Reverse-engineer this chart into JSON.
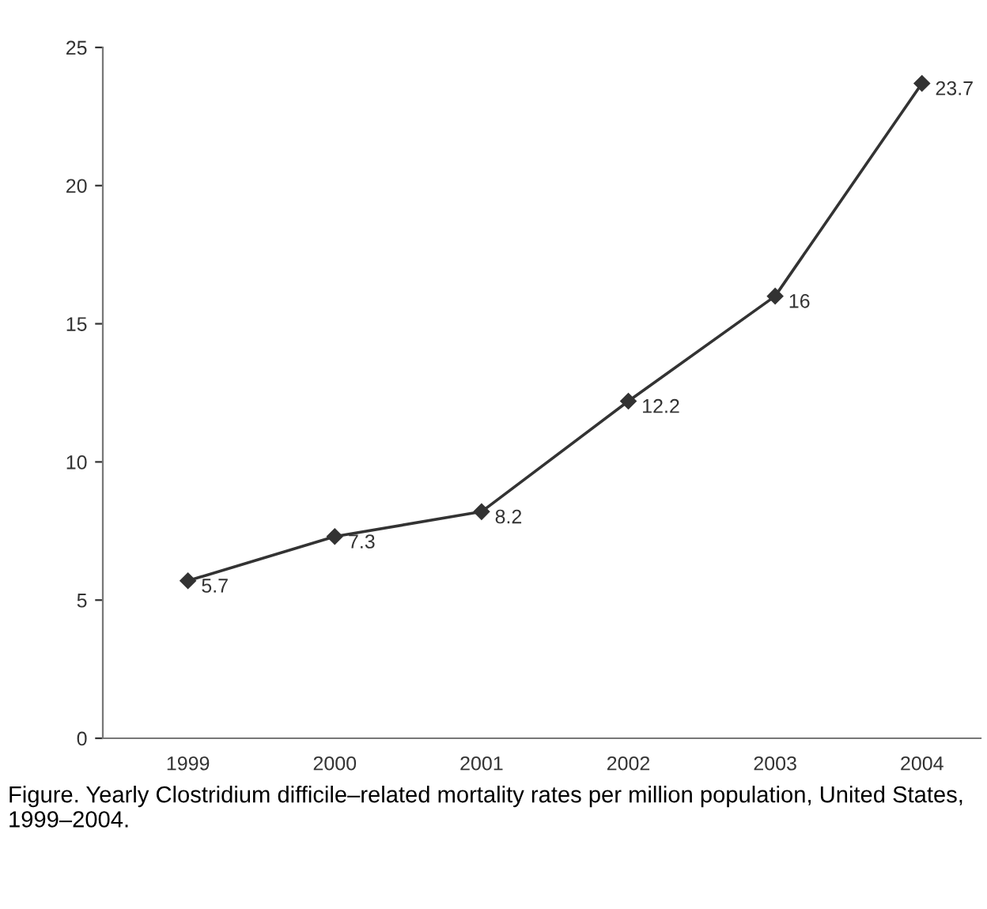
{
  "chart_data": {
    "type": "line",
    "categories": [
      "1999",
      "2000",
      "2001",
      "2002",
      "2003",
      "2004"
    ],
    "series": [
      {
        "color": "#333333",
        "values": [
          5.7,
          7.3,
          8.2,
          12.2,
          16,
          23.7
        ]
      }
    ],
    "ylim": [
      0,
      25
    ],
    "yticks": [
      0,
      5,
      10,
      15,
      20,
      25
    ],
    "marker": "diamond",
    "line_style": "solid",
    "data_labels": true,
    "grid": false,
    "annotations": [
      "Figure. Yearly Clostridium difficile–related mortality rates per million population, United States, 1999–2004."
    ]
  }
}
